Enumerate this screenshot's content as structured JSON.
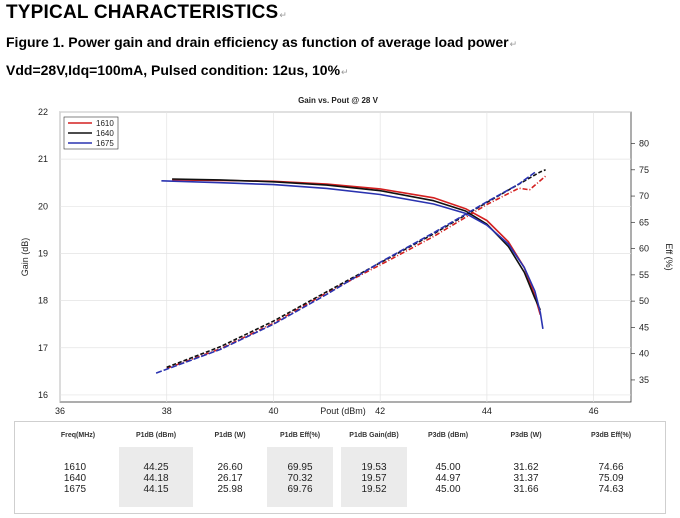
{
  "heading": {
    "title": "TYPICAL CHARACTERISTICS",
    "figure_caption": "Figure 1. Power gain and drain efficiency as function of average load power",
    "conditions": "Vdd=28V,Idq=100mA, Pulsed condition: 12us, 10%",
    "para_mark": "↵"
  },
  "chart_data": {
    "type": "line",
    "title": "Gain vs. Pout @ 28 V",
    "xlabel": "Pout (dBm)",
    "ylabel": "Gain (dB)",
    "y2label": "Eff (%)",
    "xlim": [
      36,
      46.7
    ],
    "ylim": [
      15.85,
      22
    ],
    "y2lim": [
      30.8,
      86
    ],
    "xticks": [
      "36",
      "38",
      "40",
      "42",
      "44",
      "46"
    ],
    "yticks": [
      "16",
      "17",
      "18",
      "19",
      "20",
      "21",
      "22"
    ],
    "y2ticks": [
      "35",
      "40",
      "45",
      "50",
      "55",
      "60",
      "65",
      "70",
      "75",
      "80"
    ],
    "legend": {
      "position": "top-left",
      "entries": [
        "1610",
        "1640",
        "1675"
      ]
    },
    "series": [
      {
        "name": "1610",
        "color": "#d42020",
        "gain": [
          [
            38.1,
            20.56
          ],
          [
            39,
            20.55
          ],
          [
            40,
            20.53
          ],
          [
            41,
            20.47
          ],
          [
            42,
            20.37
          ],
          [
            43,
            20.18
          ],
          [
            43.6,
            19.95
          ],
          [
            44,
            19.7
          ],
          [
            44.4,
            19.25
          ],
          [
            44.7,
            18.7
          ],
          [
            44.9,
            18.1
          ],
          [
            45.0,
            17.7
          ]
        ],
        "eff": [
          [
            38,
            37.2
          ],
          [
            39,
            40.9
          ],
          [
            40,
            45.8
          ],
          [
            41,
            51.6
          ],
          [
            42,
            56.9
          ],
          [
            43,
            62.3
          ],
          [
            44,
            68.4
          ],
          [
            44.6,
            71.5
          ],
          [
            44.8,
            71.2
          ],
          [
            45.1,
            73.8
          ]
        ]
      },
      {
        "name": "1640",
        "color": "#111111",
        "gain": [
          [
            38.1,
            20.58
          ],
          [
            39,
            20.56
          ],
          [
            40,
            20.52
          ],
          [
            41,
            20.45
          ],
          [
            42,
            20.33
          ],
          [
            43,
            20.12
          ],
          [
            43.6,
            19.9
          ],
          [
            44,
            19.62
          ],
          [
            44.4,
            19.15
          ],
          [
            44.7,
            18.6
          ],
          [
            44.9,
            18.05
          ],
          [
            45.0,
            17.8
          ]
        ],
        "eff": [
          [
            38,
            37.4
          ],
          [
            39,
            41.3
          ],
          [
            40,
            46.2
          ],
          [
            41,
            51.8
          ],
          [
            42,
            57.3
          ],
          [
            43,
            62.8
          ],
          [
            44,
            68.8
          ],
          [
            45,
            74.6
          ],
          [
            45.1,
            75
          ]
        ]
      },
      {
        "name": "1675",
        "color": "#2a33b0",
        "gain": [
          [
            37.9,
            20.54
          ],
          [
            39,
            20.5
          ],
          [
            40,
            20.46
          ],
          [
            41,
            20.38
          ],
          [
            42,
            20.25
          ],
          [
            43,
            20.05
          ],
          [
            43.6,
            19.85
          ],
          [
            44,
            19.6
          ],
          [
            44.4,
            19.2
          ],
          [
            44.7,
            18.7
          ],
          [
            44.9,
            18.2
          ],
          [
            45.0,
            17.75
          ],
          [
            45.05,
            17.4
          ]
        ],
        "eff": [
          [
            37.8,
            36.3
          ],
          [
            39,
            40.8
          ],
          [
            40,
            45.6
          ],
          [
            41,
            51.3
          ],
          [
            42,
            57.4
          ],
          [
            43,
            63.0
          ],
          [
            44,
            68.9
          ],
          [
            44.6,
            72.3
          ],
          [
            44.9,
            74.5
          ]
        ]
      }
    ]
  },
  "table": {
    "headers": [
      "Freq(MHz)",
      "P1dB (dBm)",
      "P1dB (W)",
      "P1dB Eff(%)",
      "P1dB Gain(dB)",
      "P3dB (dBm)",
      "P3dB (W)",
      "P3dB Eff(%)"
    ],
    "rows": [
      [
        "1610",
        "44.25",
        "26.60",
        "69.95",
        "19.53",
        "45.00",
        "31.62",
        "74.66"
      ],
      [
        "1640",
        "44.18",
        "26.17",
        "70.32",
        "19.57",
        "44.97",
        "31.37",
        "75.09"
      ],
      [
        "1675",
        "44.15",
        "25.98",
        "69.76",
        "19.52",
        "45.00",
        "31.66",
        "74.63"
      ]
    ]
  }
}
